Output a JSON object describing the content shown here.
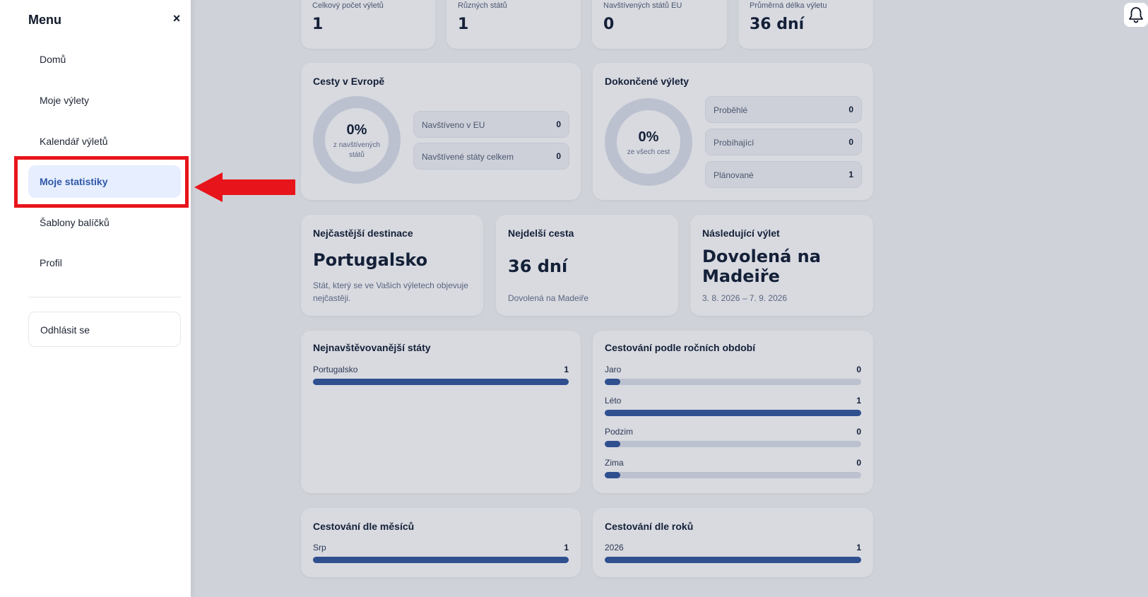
{
  "summary": {
    "total_trips_label": "Celkový počet výletů",
    "total_trips_value": "1",
    "countries_label": "Různých států",
    "countries_value": "1",
    "eu_countries_label": "Navštívených států EU",
    "eu_countries_value": "0",
    "avg_length_label": "Průměrná délka výletu",
    "avg_length_value": "36 dní"
  },
  "europe": {
    "title": "Cesty v Evropě",
    "percent": "0%",
    "percent_sub": "z navštívených států",
    "rows": [
      {
        "label": "Navštíveno v EU",
        "value": "0"
      },
      {
        "label": "Navštívené státy celkem",
        "value": "0"
      }
    ]
  },
  "completed": {
    "title": "Dokončené výlety",
    "percent": "0%",
    "percent_sub": "ze všech cest",
    "rows": [
      {
        "label": "Proběhlé",
        "value": "0"
      },
      {
        "label": "Probíhající",
        "value": "0"
      },
      {
        "label": "Plánované",
        "value": "1"
      }
    ]
  },
  "highlights": {
    "destination_title": "Nejčastější destinace",
    "destination_value": "Portugalsko",
    "destination_sub": "Stát, který se ve Vašich výletech objevuje nejčastěji.",
    "longest_title": "Nejdelší cesta",
    "longest_value": "36 dní",
    "longest_sub": "Dovolená na Madeiře",
    "next_title": "Následující výlet",
    "next_value": "Dovolená na Madeiře",
    "next_sub": "3. 8. 2026 – 7. 9. 2026"
  },
  "top_countries": {
    "title": "Nejnavštěvovanější státy",
    "items": [
      {
        "name": "Portugalsko",
        "count": "1",
        "fraction": 1.0
      }
    ]
  },
  "seasons": {
    "title": "Cestování podle ročních období",
    "items": [
      {
        "name": "Jaro",
        "count": "0",
        "fraction": 0.0
      },
      {
        "name": "Léto",
        "count": "1",
        "fraction": 1.0
      },
      {
        "name": "Podzim",
        "count": "0",
        "fraction": 0.0
      },
      {
        "name": "Zima",
        "count": "0",
        "fraction": 0.0
      }
    ]
  },
  "months": {
    "title": "Cestování dle měsíců",
    "items": [
      {
        "name": "Srp",
        "count": "1",
        "fraction": 1.0
      }
    ]
  },
  "years": {
    "title": "Cestování dle roků",
    "items": [
      {
        "name": "2026",
        "count": "1",
        "fraction": 1.0
      }
    ]
  },
  "menu": {
    "title": "Menu",
    "close_symbol": "×",
    "items": [
      "Domů",
      "Moje výlety",
      "Kalendář výletů",
      "Moje statistiky",
      "Šablony balíčků",
      "Profil"
    ],
    "active_index": 3,
    "logout": "Odhlásit se"
  },
  "icons": {
    "bell": "bell-icon",
    "close": "close-icon",
    "annotation_arrow": "arrow-left-icon"
  },
  "colors": {
    "accent": "#2f4f8f",
    "active_bg": "#e6eeff",
    "annotation": "#e8141b"
  }
}
